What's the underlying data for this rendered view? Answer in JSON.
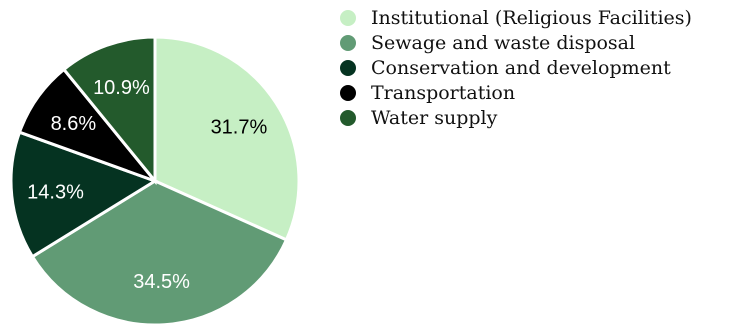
{
  "chart_data": {
    "type": "pie",
    "start_angle_deg": 0,
    "direction": "clockwise",
    "slices": [
      {
        "label": "Institutional (Religious Facilities)",
        "value": 31.7,
        "display": "31.7%",
        "color": "#c6efc4",
        "label_color": "#000000"
      },
      {
        "label": "Sewage and waste disposal",
        "value": 34.5,
        "display": "34.5%",
        "color": "#619b75",
        "label_color": "#ffffff"
      },
      {
        "label": "Conservation and development",
        "value": 14.3,
        "display": "14.3%",
        "color": "#053321",
        "label_color": "#ffffff"
      },
      {
        "label": "Transportation",
        "value": 8.6,
        "display": "8.6%",
        "color": "#000000",
        "label_color": "#ffffff"
      },
      {
        "label": "Water supply",
        "value": 10.9,
        "display": "10.9%",
        "color": "#235a2c",
        "label_color": "#ffffff"
      }
    ],
    "legend_position": "top-right"
  }
}
